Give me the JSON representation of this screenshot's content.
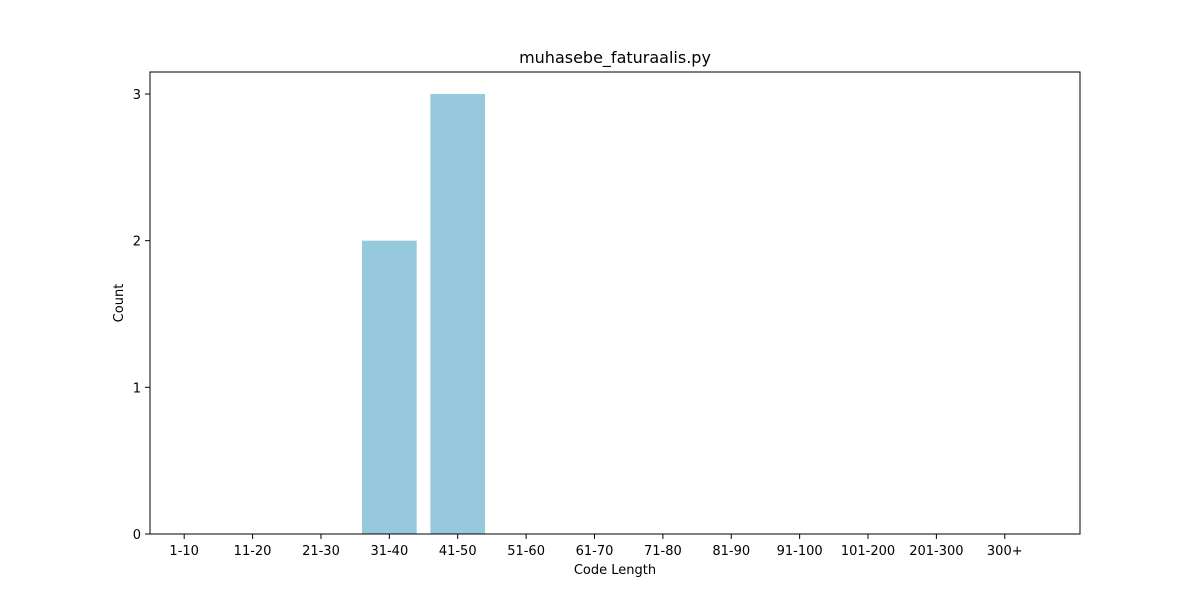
{
  "chart_data": {
    "type": "bar",
    "title": "muhasebe_faturaalis.py",
    "xlabel": "Code Length",
    "ylabel": "Count",
    "categories": [
      "1-10",
      "11-20",
      "21-30",
      "31-40",
      "41-50",
      "51-60",
      "61-70",
      "71-80",
      "81-90",
      "91-100",
      "101-200",
      "201-300",
      "300+"
    ],
    "values": [
      0,
      0,
      0,
      2,
      3,
      0,
      0,
      0,
      0,
      0,
      0,
      0,
      0
    ],
    "yticks": [
      0,
      1,
      2,
      3
    ],
    "ylim": [
      0,
      3.15
    ],
    "grid": false,
    "bar_color": "#96c9dd"
  }
}
